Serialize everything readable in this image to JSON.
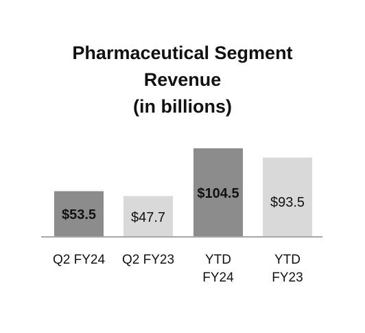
{
  "chart_data": {
    "type": "bar",
    "title": "Pharmaceutical Segment Revenue (in billions)",
    "title_lines": [
      "Pharmaceutical Segment",
      "Revenue",
      "(in billions)"
    ],
    "categories": [
      "Q2 FY24",
      "Q2 FY23",
      "YTD FY24",
      "YTD FY23"
    ],
    "category_lines": [
      [
        "Q2 FY24"
      ],
      [
        "Q2 FY23"
      ],
      [
        "YTD",
        "FY24"
      ],
      [
        "YTD",
        "FY23"
      ]
    ],
    "values": [
      53.5,
      47.7,
      104.5,
      93.5
    ],
    "data_labels": [
      "$53.5",
      "$47.7",
      "$104.5",
      "$93.5"
    ],
    "bar_colors": [
      "#8c8c8c",
      "#d9d9d9",
      "#8c8c8c",
      "#d9d9d9"
    ],
    "label_bold": [
      true,
      false,
      true,
      false
    ],
    "axis_color": "#a6a6a6",
    "xlabel": "",
    "ylabel": "",
    "ylim": [
      0,
      110
    ],
    "grid": false,
    "legend": "none"
  }
}
